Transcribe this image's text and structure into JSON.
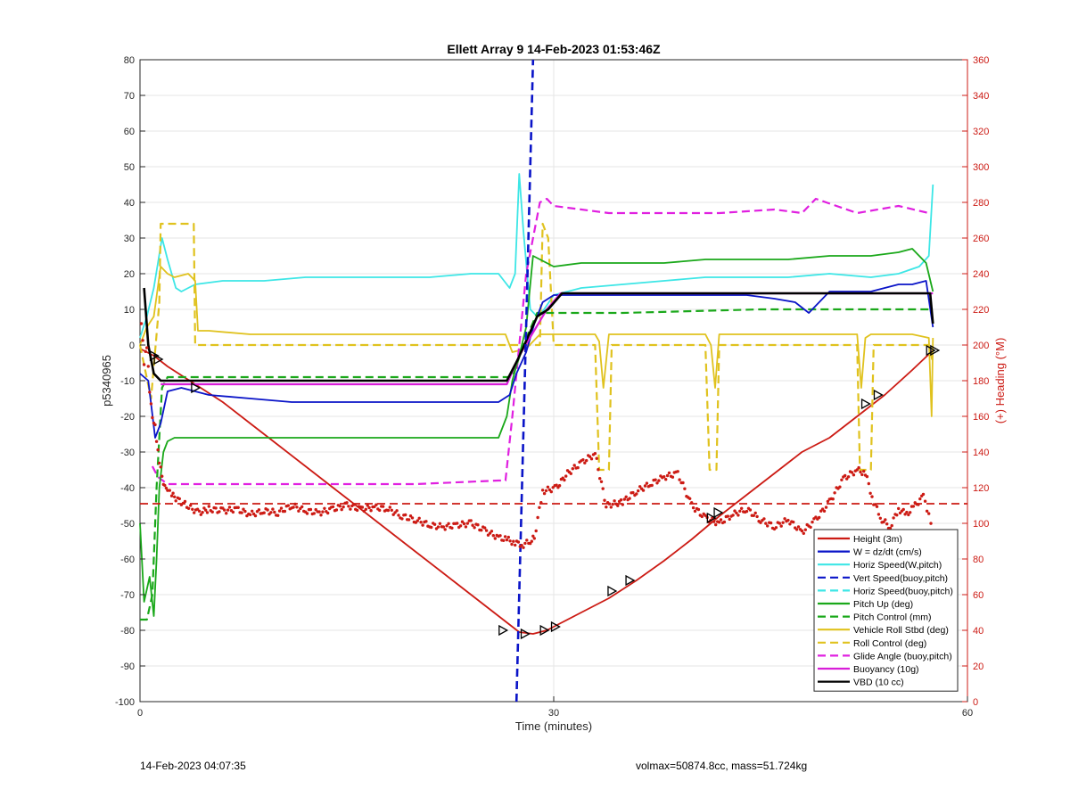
{
  "chart_data": {
    "type": "line",
    "title": "Ellett Array 9 14-Feb-2023 01:53:46Z",
    "xlabel": "Time (minutes)",
    "ylabel": "p5340965",
    "y2label": "(+) Heading (°M)",
    "xlim": [
      0,
      60
    ],
    "ylim": [
      -100,
      80
    ],
    "y2lim": [
      0,
      360
    ],
    "xticks": [
      0,
      30,
      60
    ],
    "yticks": [
      -100,
      -90,
      -80,
      -70,
      -60,
      -50,
      -40,
      -30,
      -20,
      -10,
      0,
      10,
      20,
      30,
      40,
      50,
      60,
      70,
      80
    ],
    "y2ticks": [
      0,
      20,
      40,
      60,
      80,
      100,
      120,
      140,
      160,
      180,
      200,
      220,
      240,
      260,
      280,
      300,
      320,
      340,
      360
    ],
    "grid": true,
    "legend_position": "bottom-right",
    "colors": {
      "height": "#cc1b14",
      "w": "#0a14c8",
      "horiz_w": "#3de6e6",
      "vert": "#0a14c8",
      "horiz_buoy": "#3de6e6",
      "pitch_up": "#1aa81a",
      "pitch_control": "#1aa81a",
      "roll": "#e0c21e",
      "roll_control": "#e0c21e",
      "glide": "#e020e0",
      "buoyancy": "#d81ed8",
      "vbd": "#000000",
      "heading": "#cc1b14"
    },
    "series": [
      {
        "key": "height",
        "name": "Height (3m)",
        "style": "solid",
        "width": 1.8,
        "x": [
          0,
          1,
          2,
          4,
          6,
          8,
          10,
          12,
          14,
          16,
          18,
          20,
          22,
          24,
          26,
          27.5,
          28.5,
          29.5,
          30.5,
          32,
          34,
          36,
          38,
          40,
          42,
          44,
          46,
          48,
          50,
          52,
          54,
          56,
          57.5
        ],
        "y": [
          -1,
          -3,
          -6,
          -11,
          -16,
          -22,
          -28,
          -34,
          -40,
          -46,
          -52,
          -58,
          -64,
          -70,
          -76,
          -80.5,
          -81,
          -80,
          -78,
          -75,
          -71,
          -66,
          -60.5,
          -54.5,
          -48,
          -42,
          -36,
          -30,
          -26,
          -20,
          -14,
          -7,
          -1.5
        ]
      },
      {
        "key": "w",
        "name": "W = dz/dt (cm/s)",
        "style": "solid",
        "width": 1.8,
        "x": [
          0,
          0.6,
          1.1,
          1.5,
          2,
          3,
          5,
          8,
          11,
          14,
          17,
          20,
          23,
          26,
          26.8,
          27.3,
          28,
          28.6,
          29.2,
          30,
          32,
          35,
          38,
          41,
          44,
          46,
          47.5,
          48.5,
          50,
          53,
          55,
          56,
          57,
          57.5
        ],
        "y": [
          -8,
          -10,
          -26,
          -22,
          -13,
          -12,
          -14,
          -15,
          -16,
          -16,
          -16,
          -16,
          -16,
          -16,
          -14,
          -8,
          -2,
          6,
          12,
          14,
          14,
          14,
          14,
          14,
          14,
          13,
          12,
          9,
          15,
          15,
          17,
          17,
          18,
          5
        ]
      },
      {
        "key": "horiz_w",
        "name": "Horiz Speed(W,pitch)",
        "style": "solid",
        "width": 1.8,
        "x": [
          0,
          0.5,
          1,
          1.6,
          2,
          2.6,
          3,
          4,
          6,
          9,
          12,
          15,
          18,
          21,
          24,
          26,
          26.8,
          27.2,
          27.5,
          27.8,
          28.3,
          28.8,
          29.3,
          30,
          32,
          35,
          38,
          41,
          44,
          47,
          50,
          53,
          55,
          56.5,
          57.2,
          57.5
        ],
        "y": [
          2,
          8,
          16,
          30,
          24,
          16,
          15,
          17,
          18,
          18,
          19,
          19,
          19,
          19,
          20,
          20,
          16,
          20,
          48,
          32,
          10,
          8,
          10,
          14,
          16,
          17,
          18,
          19,
          19,
          19,
          20,
          19,
          20,
          22,
          25,
          45
        ]
      },
      {
        "key": "vert",
        "name": "Vert Speed(buoy,pitch)",
        "style": "dashed",
        "width": 2.6,
        "x": [
          27.3,
          28.5
        ],
        "y": [
          -100,
          80
        ]
      },
      {
        "key": "horiz_buoy",
        "name": "Horiz Speed(buoy,pitch)",
        "style": "dashed",
        "width": 2.2,
        "x": [],
        "y": []
      },
      {
        "key": "pitch_up",
        "name": "Pitch Up (deg)",
        "style": "solid",
        "width": 1.8,
        "x": [
          0,
          0.3,
          0.7,
          1,
          1.2,
          1.4,
          1.7,
          2,
          2.5,
          3,
          5,
          8,
          11,
          14,
          17,
          20,
          23,
          26,
          26.6,
          27,
          27.5,
          28,
          28.5,
          29,
          30,
          32,
          35,
          38,
          41,
          44,
          47,
          50,
          53,
          55,
          56,
          57,
          57.5
        ],
        "y": [
          -50,
          -72,
          -65,
          -76,
          -60,
          -40,
          -30,
          -27,
          -26,
          -26,
          -26,
          -26,
          -26,
          -26,
          -26,
          -26,
          -26,
          -26,
          -20,
          -10,
          -3,
          5,
          25,
          24,
          22,
          23,
          23,
          23,
          24,
          24,
          24,
          25,
          25,
          26,
          27,
          23,
          15
        ]
      },
      {
        "key": "pitch_control",
        "name": "Pitch Control (mm)",
        "style": "dashed",
        "width": 2.2,
        "x": [
          0,
          0.5,
          0.9,
          1.2,
          1.6,
          2,
          26,
          27,
          27.8,
          28.8,
          35,
          45,
          57.5
        ],
        "y": [
          -77,
          -77,
          -70,
          -40,
          -12,
          -9,
          -9,
          -9,
          0,
          9,
          9,
          10,
          10
        ]
      },
      {
        "key": "roll",
        "name": "Vehicle Roll Stbd (deg)",
        "style": "solid",
        "width": 1.8,
        "x": [
          0,
          0.5,
          1,
          1.5,
          2,
          2.5,
          3.5,
          4,
          4.2,
          5,
          8,
          11,
          14,
          17,
          20,
          23,
          26,
          26.5,
          27,
          28,
          29,
          30,
          33,
          33.3,
          33.6,
          34,
          38,
          41,
          41.4,
          41.7,
          42,
          46,
          50,
          52,
          52.3,
          52.6,
          53,
          56,
          57.2,
          57.4,
          57.5
        ],
        "y": [
          0,
          5,
          8,
          22,
          20,
          19,
          20,
          18,
          4,
          4,
          3,
          3,
          3,
          3,
          3,
          3,
          3,
          3,
          -2,
          -1,
          3,
          3,
          3,
          1,
          -12,
          3,
          3,
          3,
          0,
          -12,
          3,
          3,
          3,
          3,
          -12,
          2,
          3,
          3,
          2,
          -20,
          2
        ]
      },
      {
        "key": "roll_control",
        "name": "Roll Control (deg)",
        "style": "dashed",
        "width": 2.2,
        "x": [
          0,
          0.8,
          1.4,
          1.5,
          3.9,
          4,
          4.2,
          6,
          26,
          27,
          28.5,
          29,
          29.2,
          29.6,
          30,
          33,
          33.3,
          34,
          34.2,
          41,
          41.3,
          41.8,
          42,
          52,
          52.2,
          53,
          53.2,
          56,
          57.2,
          57.5
        ],
        "y": [
          0,
          -15,
          12,
          34,
          34,
          0,
          0,
          0,
          0,
          0,
          0,
          0,
          34,
          30,
          0,
          0,
          -35,
          -35,
          0,
          0,
          -35,
          -35,
          0,
          0,
          -35,
          -35,
          0,
          0,
          0,
          -5
        ]
      },
      {
        "key": "glide",
        "name": "Glide Angle (buoy,pitch)",
        "style": "dashed",
        "width": 2.2,
        "x": [
          0.9,
          1.3,
          2,
          3,
          5,
          10,
          15,
          20,
          26,
          26.5,
          27,
          28,
          29,
          29.5,
          30,
          34,
          38,
          42,
          46,
          48,
          49,
          52,
          55,
          57.2
        ],
        "y": [
          -34,
          -37,
          -39,
          -39,
          -39,
          -39,
          -39,
          -39,
          -38,
          -38,
          -20,
          20,
          40,
          41,
          39,
          37,
          37,
          37,
          38,
          37,
          41,
          37,
          39,
          37
        ]
      },
      {
        "key": "buoyancy",
        "name": "Buoyancy (10g)",
        "style": "solid",
        "width": 2.2,
        "x": [
          1.5,
          26.6,
          27.5,
          29.5,
          30.5,
          57.5
        ],
        "y": [
          -11,
          -11,
          -3,
          10,
          14.5,
          14.5
        ]
      },
      {
        "key": "vbd",
        "name": "VBD (10 cc)",
        "style": "solid",
        "width": 2.6,
        "x": [
          0.3,
          0.6,
          1,
          1.5,
          26.6,
          27.4,
          28.8,
          29.6,
          30.6,
          57.3,
          57.5
        ],
        "y": [
          16,
          0,
          -8,
          -10,
          -10,
          -4,
          8,
          10,
          14.5,
          14.5,
          6
        ]
      }
    ],
    "heading": {
      "name": "Heading (°M)",
      "axis": "right",
      "style": "dots",
      "target_heading": 111,
      "x": [
        0.1,
        0.3,
        0.5,
        0.7,
        0.9,
        1.1,
        1.3,
        1.5,
        1.8,
        2.0,
        2.3,
        2.6,
        3.0,
        3.4,
        3.8,
        4.3,
        5,
        6,
        7,
        8,
        9,
        10,
        11,
        12,
        13,
        14,
        15,
        16,
        17,
        18,
        19,
        20,
        21,
        22,
        23,
        24,
        25,
        26,
        26.6,
        27.2,
        27.8,
        28.3,
        28.6,
        29.2,
        30.2,
        31,
        32,
        33,
        33.8,
        35,
        36,
        37,
        38,
        39,
        40,
        41,
        42,
        43,
        44,
        45,
        46,
        47,
        48,
        49,
        50,
        51,
        52,
        52.6,
        53.2,
        53.8,
        54.4,
        55,
        55.6,
        56.2,
        56.8,
        57.2,
        57.5
      ],
      "y": [
        212,
        190,
        200,
        175,
        160,
        155,
        140,
        130,
        120,
        118,
        116,
        114,
        112,
        110,
        108,
        106,
        108,
        107,
        108,
        105,
        107,
        106,
        110,
        107,
        106,
        108,
        110,
        108,
        109,
        108,
        104,
        102,
        99,
        98,
        99,
        100,
        96,
        92,
        91,
        89,
        88,
        90,
        92,
        118,
        120,
        128,
        134,
        139,
        110,
        112,
        118,
        122,
        126,
        128,
        110,
        103,
        100,
        105,
        108,
        102,
        98,
        102,
        95,
        102,
        112,
        125,
        130,
        128,
        112,
        102,
        98,
        108,
        105,
        110,
        115,
        105,
        92
      ]
    },
    "markers": {
      "series_key": "height",
      "shape": "triangle",
      "x": [
        1.0,
        1.3,
        4.0,
        26.3,
        27.9,
        29.3,
        30.1,
        34.2,
        35.5,
        41.4,
        41.9,
        52.6,
        53.5,
        57.3,
        57.6
      ],
      "y": [
        -3,
        -4,
        -12,
        -80,
        -81,
        -80,
        -79,
        -69,
        -66,
        -48.5,
        -47,
        -16.5,
        -14,
        -1.5,
        -1.5
      ]
    }
  },
  "footer": {
    "left": "14-Feb-2023 04:07:35",
    "right": "volmax=50874.8cc, mass=51.724kg"
  }
}
